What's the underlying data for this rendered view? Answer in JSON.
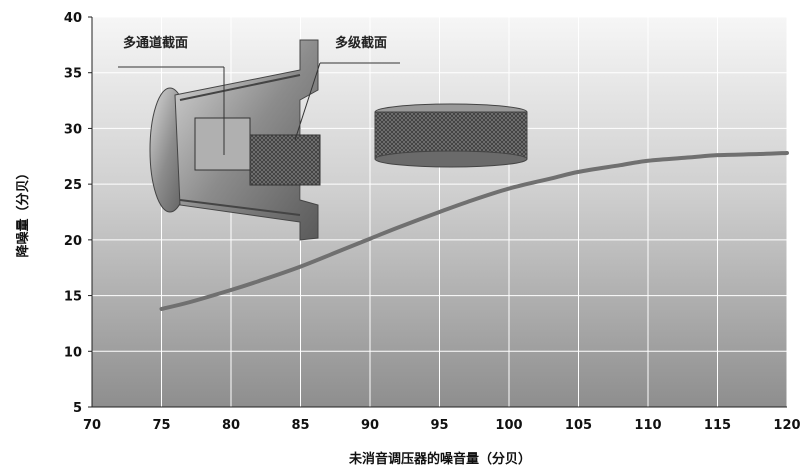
{
  "chart_data": {
    "type": "line",
    "xlabel": "未消音调压器的噪音量（分贝）",
    "ylabel": "降噪量（分贝）",
    "xlim": [
      70,
      120
    ],
    "ylim": [
      5,
      40
    ],
    "x_ticks": [
      70,
      75,
      80,
      85,
      90,
      95,
      100,
      105,
      110,
      115,
      120
    ],
    "y_ticks": [
      5,
      10,
      15,
      20,
      25,
      30,
      35,
      40
    ],
    "grid": true,
    "series": [
      {
        "x": [
          75,
          77,
          80,
          82,
          85,
          88,
          90,
          92,
          95,
          97,
          100,
          103,
          105,
          108,
          110,
          113,
          115,
          118,
          120
        ],
        "y": [
          13.8,
          14.4,
          15.5,
          16.3,
          17.6,
          19.1,
          20.1,
          21.1,
          22.5,
          23.4,
          24.6,
          25.5,
          26.1,
          26.7,
          27.1,
          27.4,
          27.6,
          27.7,
          27.8
        ]
      }
    ],
    "line_color": "#707070",
    "background": "gradient light-to-dark gray",
    "annotations": {
      "multichannel": "多通道截面",
      "multistage": "多级截面"
    }
  }
}
